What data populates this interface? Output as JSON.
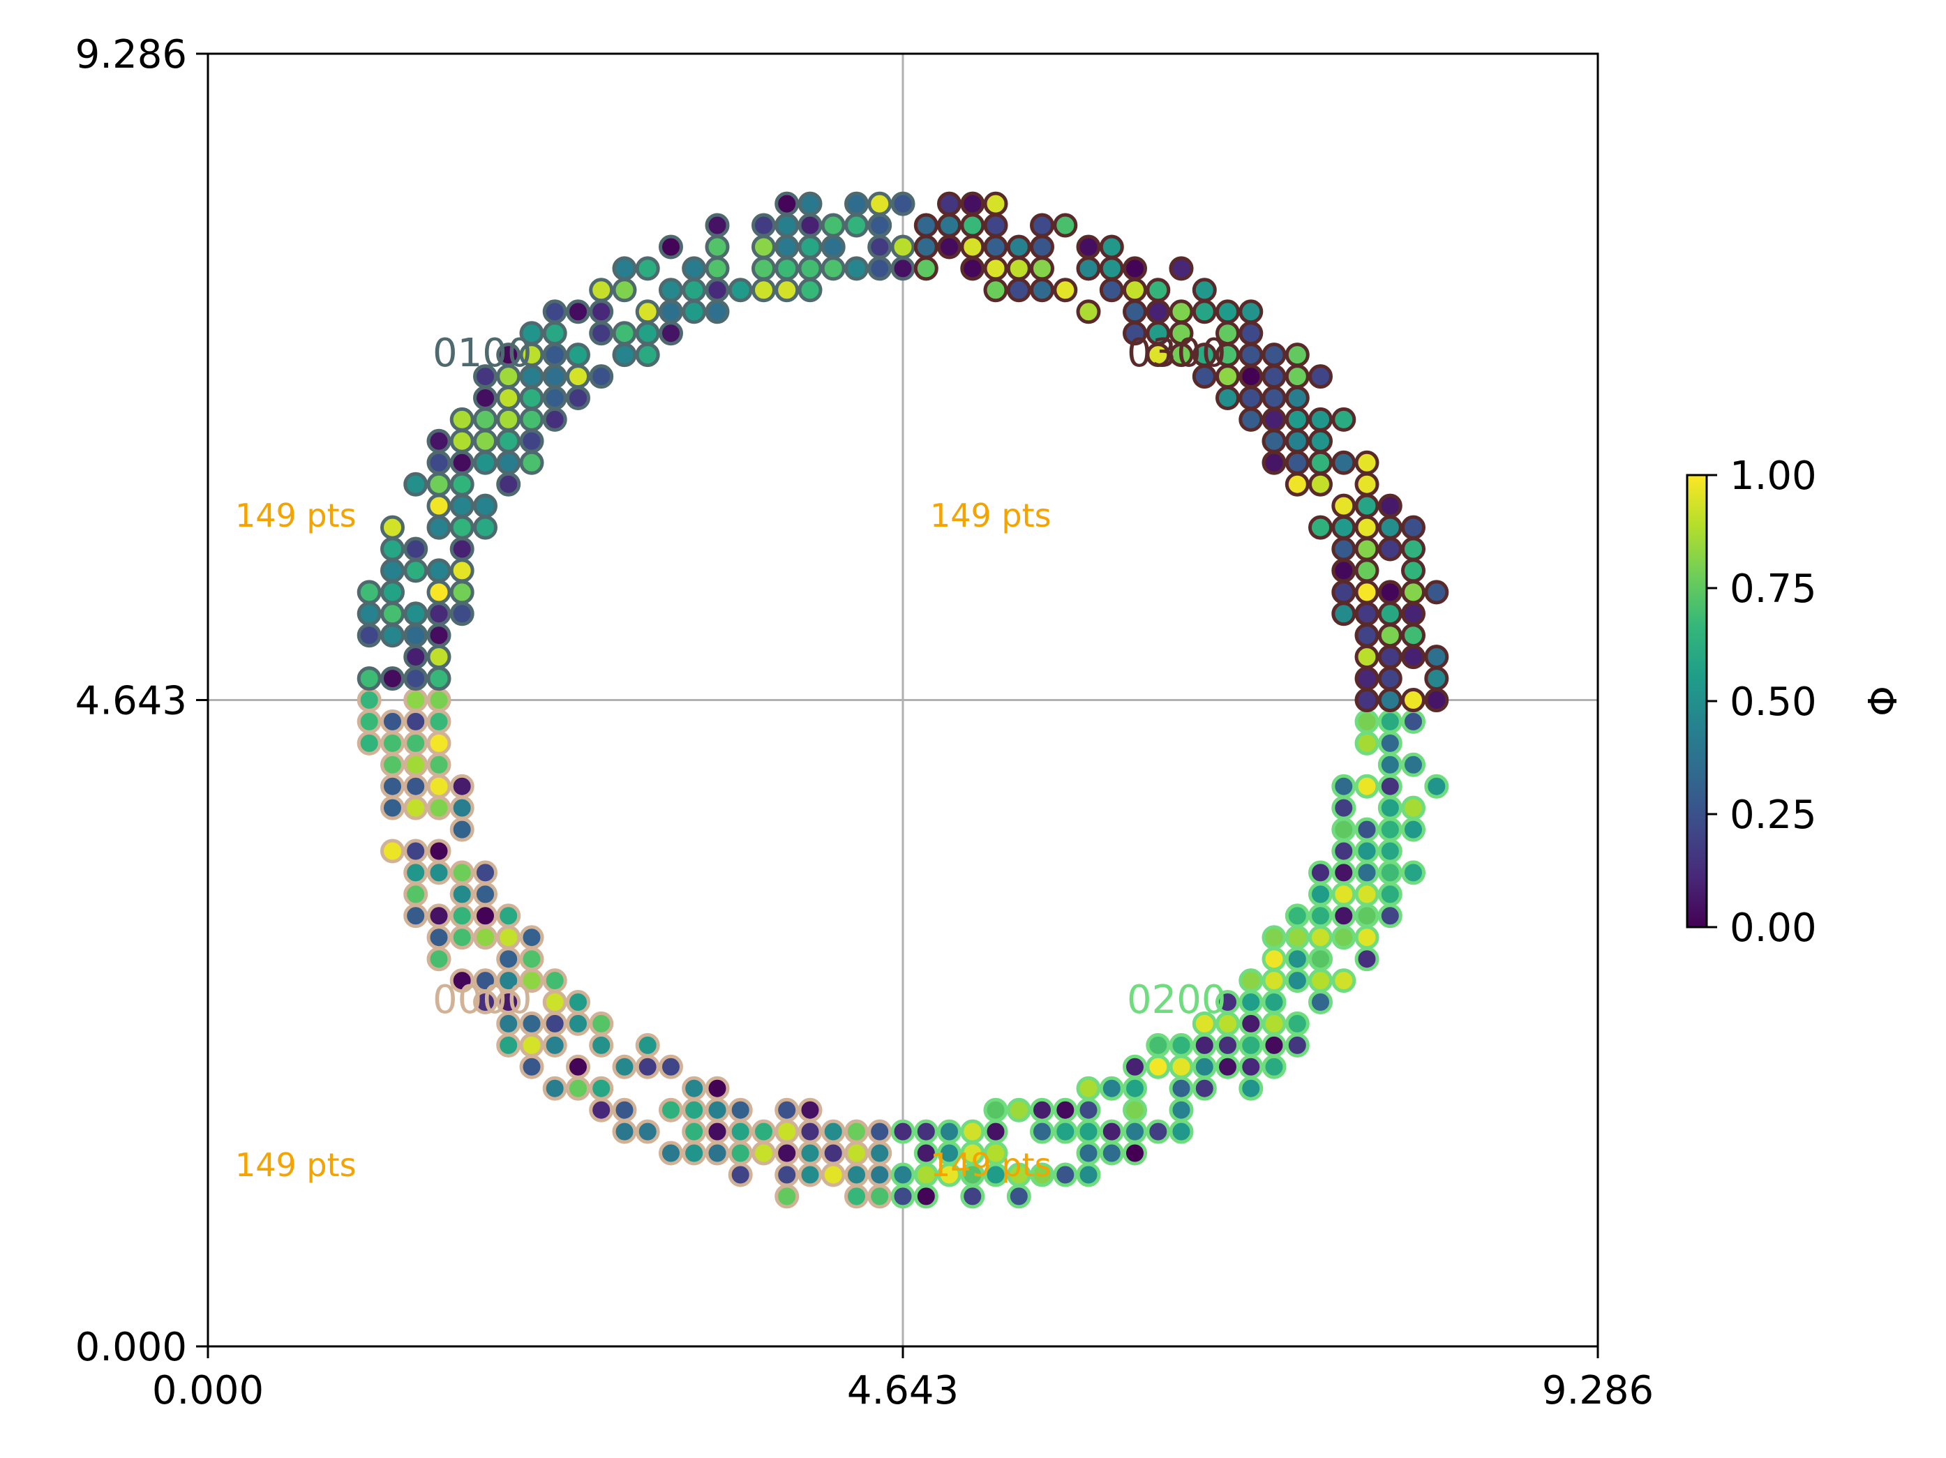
{
  "chart_data": {
    "type": "scatter",
    "title": "",
    "xlabel": "",
    "ylabel": "",
    "xlim": [
      0,
      9.286
    ],
    "ylim": [
      0,
      9.286
    ],
    "x_ticks": [
      "0.000",
      "4.643",
      "9.286"
    ],
    "y_ticks": [
      "0.000",
      "4.643",
      "9.286"
    ],
    "grid": "crosshair at center (4.643, 4.643)",
    "colormap": "viridis",
    "colorbar": {
      "label": "Φ",
      "range": [
        0.0,
        1.0
      ],
      "ticks": [
        "0.00",
        "0.25",
        "0.50",
        "0.75",
        "1.00"
      ]
    },
    "ring": {
      "center": [
        4.643,
        4.643
      ],
      "inner_radius": 3.0,
      "outer_radius": 3.65,
      "grid_step": 0.155,
      "description": "points on a square lattice within an annulus, color = Φ"
    },
    "quadrants": [
      {
        "id": "0000",
        "label": "0000",
        "edge_color": "#d2b296",
        "angle_range_deg": [
          180,
          270
        ],
        "count_label": "149 pts"
      },
      {
        "id": "0100",
        "label": "0100",
        "edge_color": "#4f6a6f",
        "angle_range_deg": [
          90,
          180
        ],
        "count_label": "149 pts"
      },
      {
        "id": "0200",
        "label": "0200",
        "edge_color": "#6fdc7e",
        "angle_range_deg": [
          270,
          360
        ],
        "count_label": "149 pts"
      },
      {
        "id": "0300",
        "label": "0300",
        "edge_color": "#5a2a2a",
        "angle_range_deg": [
          0,
          90
        ],
        "count_label": "149 pts"
      }
    ],
    "count_label_color": "#f5a300"
  }
}
